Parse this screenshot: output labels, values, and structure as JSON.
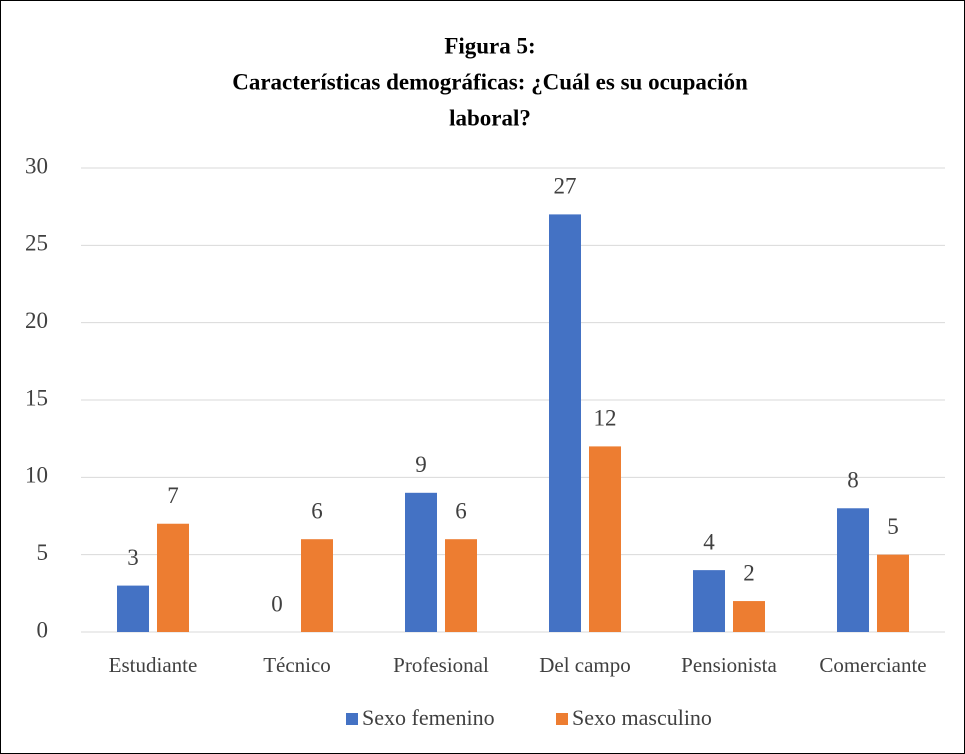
{
  "chart_data": {
    "type": "bar",
    "title": [
      "Figura 5:",
      "Características demográficas: ¿Cuál es su ocupación",
      "laboral?"
    ],
    "categories": [
      "Estudiante",
      "Técnico",
      "Profesional",
      "Del campo",
      "Pensionista",
      "Comerciante"
    ],
    "series": [
      {
        "name": "Sexo femenino",
        "color": "#4472c4",
        "values": [
          3,
          0,
          9,
          27,
          4,
          8
        ]
      },
      {
        "name": "Sexo masculino",
        "color": "#ed7d31",
        "values": [
          7,
          6,
          6,
          12,
          2,
          5
        ]
      }
    ],
    "ylim": [
      0,
      30
    ],
    "yticks": [
      0,
      5,
      10,
      15,
      20,
      25,
      30
    ],
    "grid": true,
    "legend": "bottom"
  }
}
